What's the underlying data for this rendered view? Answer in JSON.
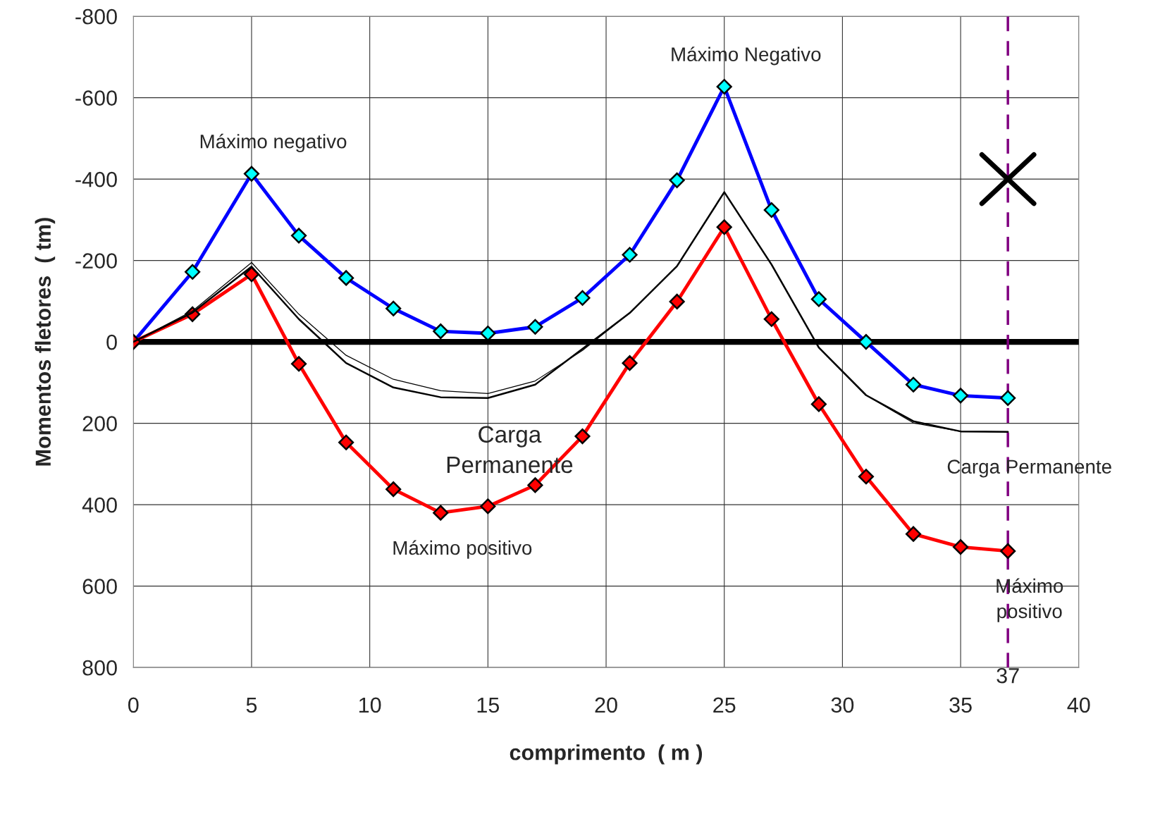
{
  "chart_data": {
    "type": "line",
    "xlabel": "comprimento  ( m )",
    "ylabel": "Momentos fletores  ( tm)",
    "xlim": [
      0,
      40
    ],
    "xticks": [
      0,
      5,
      10,
      15,
      20,
      25,
      30,
      35,
      40
    ],
    "ylim": [
      800,
      -800
    ],
    "yticks": [
      -800,
      -600,
      -400,
      -200,
      0,
      200,
      400,
      600,
      800
    ],
    "grid": true,
    "legend": false,
    "marker": "diamond",
    "line_style": "solid",
    "x": [
      0,
      2.5,
      5,
      7,
      9,
      11,
      13,
      15,
      17,
      19,
      21,
      23,
      25,
      27,
      29,
      31,
      33,
      35,
      37
    ],
    "series": [
      {
        "color": "#0000ff",
        "colors": [
          "#00ffff",
          "#00ffff",
          "#00ffff",
          "#00ffff",
          "#00ffff",
          "#00ffff",
          "#00ffff",
          "#00ffff",
          "#00ffff",
          "#00ffff",
          "#00ffff",
          "#00ffff",
          "#00ffff",
          "#00ffff",
          "#00ffff",
          "#00ffff",
          "#00ffff",
          "#00ffff",
          "#00ffff"
        ],
        "values": [
          0,
          -172,
          -413,
          -261,
          -157,
          -82,
          -26,
          -21,
          -37,
          -108,
          -214,
          -397,
          -627,
          -324,
          -105,
          0,
          105,
          132,
          138
        ]
      },
      {
        "color": "#ff0000",
        "values": [
          0,
          -68,
          -166,
          54,
          247,
          362,
          420,
          404,
          352,
          232,
          52,
          -99,
          -282,
          -56,
          153,
          331,
          472,
          504,
          514
        ]
      },
      {
        "color": "#000000",
        "marker": "none",
        "values": [
          0,
          -72,
          -185,
          -56,
          52,
          112,
          136,
          138,
          105,
          17,
          -71,
          -186,
          -368,
          -190,
          14,
          131,
          195,
          220,
          221
        ]
      },
      {
        "color": "#000000",
        "marker": "none",
        "values": [
          0,
          -76,
          -195,
          -68,
          33,
          92,
          120,
          127,
          96,
          21,
          -71,
          -186,
          -368,
          -190,
          14,
          131,
          199,
          220,
          221
        ]
      }
    ],
    "ref_lines": [
      {
        "axis": "y",
        "value": 0,
        "color": "#000000",
        "line_style": "solid"
      },
      {
        "axis": "x",
        "value": 37,
        "label": "37",
        "color": "#800080",
        "line_style": "dashed"
      }
    ],
    "annotations": [
      {
        "text": "Máximo negativo",
        "x": 5,
        "y": -413
      },
      {
        "text": "Máximo Negativo",
        "x": 25,
        "y": -627
      },
      {
        "text": "Carga\nPermanente",
        "x": 15,
        "y": 138
      },
      {
        "text": "Máximo positivo",
        "x": 13,
        "y": 420
      },
      {
        "text": "Carga Permanente",
        "x": 37,
        "y": 221
      },
      {
        "text": "Máximo\npositivo",
        "x": 37,
        "y": 514
      }
    ]
  }
}
